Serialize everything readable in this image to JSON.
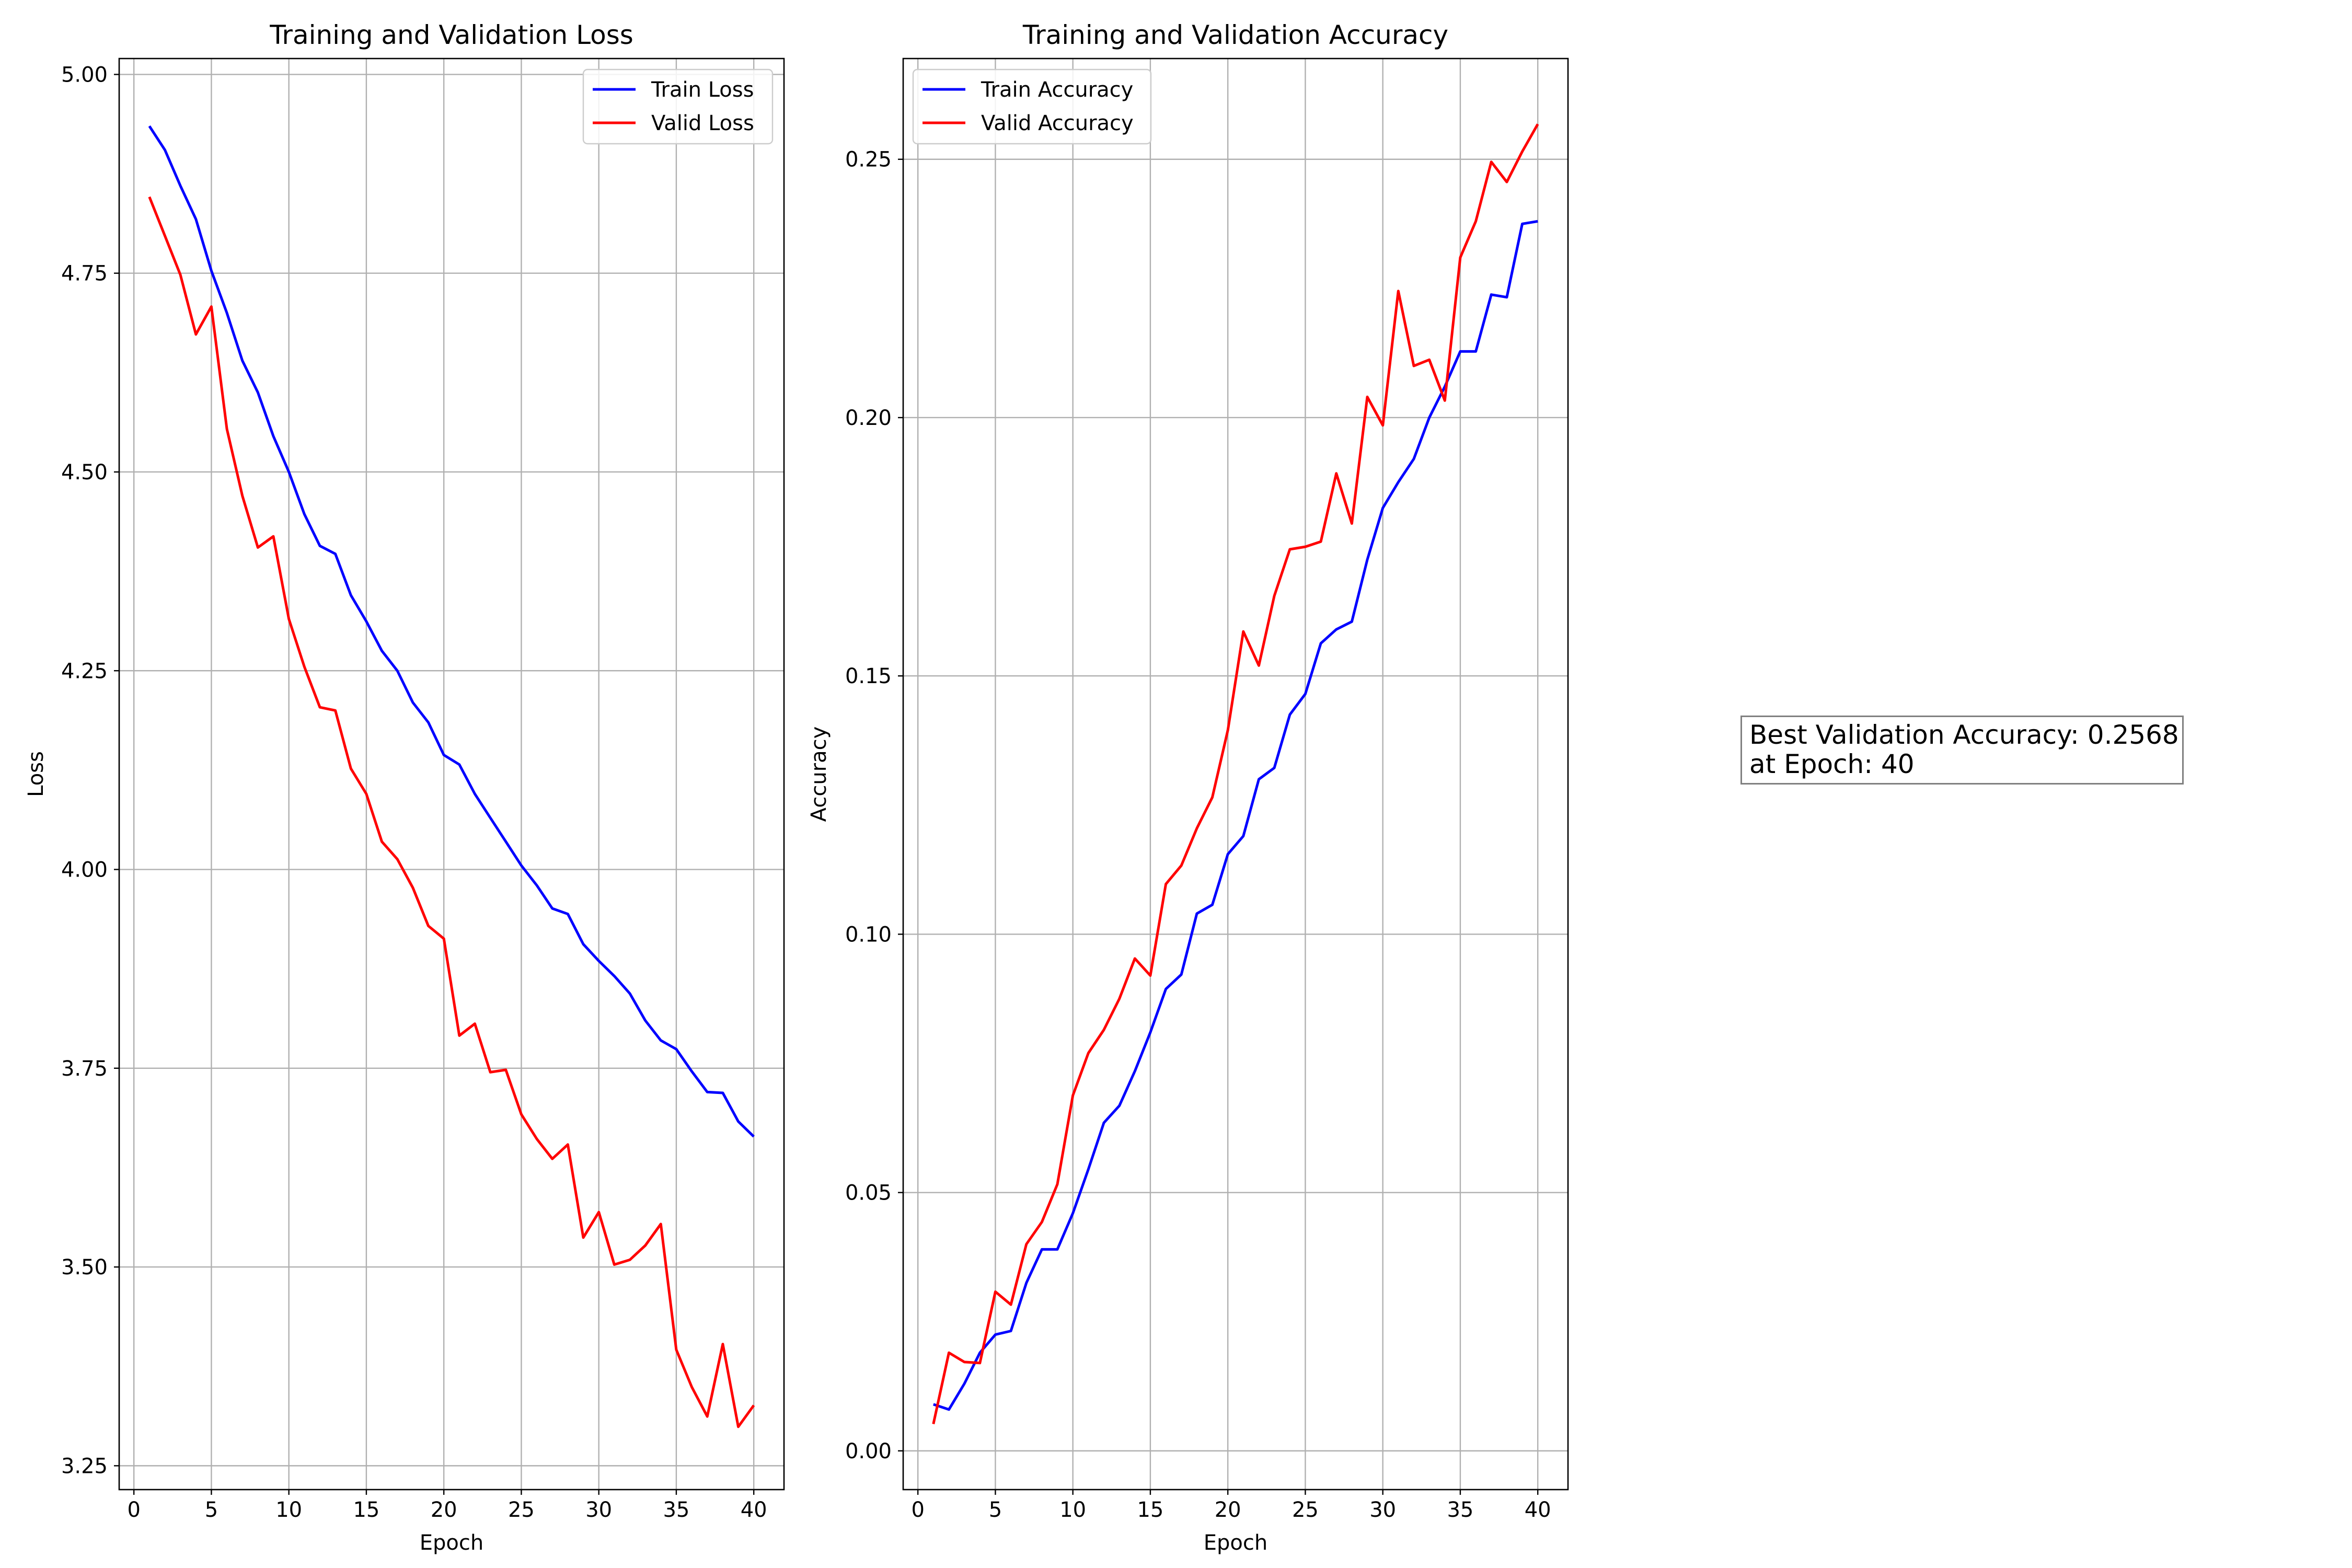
{
  "chart_data": [
    {
      "type": "line",
      "title": "Training and Validation Loss",
      "xlabel": "Epoch",
      "ylabel": "Loss",
      "xlim": [
        -0.95,
        41.95
      ],
      "ylim": [
        3.22,
        5.02
      ],
      "xticks": [
        "0",
        "5",
        "10",
        "15",
        "20",
        "25",
        "30",
        "35",
        "40"
      ],
      "yticks": [
        "3.25",
        "3.50",
        "3.75",
        "4.00",
        "4.25",
        "4.50",
        "4.75",
        "5.00"
      ],
      "grid": true,
      "legend": "top-right",
      "x": [
        1,
        2,
        3,
        4,
        5,
        6,
        7,
        8,
        9,
        10,
        11,
        12,
        13,
        14,
        15,
        16,
        17,
        18,
        19,
        20,
        21,
        22,
        23,
        24,
        25,
        26,
        27,
        28,
        29,
        30,
        31,
        32,
        33,
        34,
        35,
        36,
        37,
        38,
        39,
        40
      ],
      "series": [
        {
          "name": "Train Loss",
          "color": "#0000ff",
          "values": [
            4.935,
            4.905,
            4.86,
            4.818,
            4.753,
            4.7,
            4.64,
            4.6,
            4.545,
            4.5,
            4.447,
            4.407,
            4.397,
            4.345,
            4.312,
            4.275,
            4.25,
            4.21,
            4.185,
            4.144,
            4.132,
            4.095,
            4.065,
            4.035,
            4.005,
            3.98,
            3.951,
            3.944,
            3.906,
            3.885,
            3.866,
            3.844,
            3.81,
            3.785,
            3.774,
            3.746,
            3.72,
            3.719,
            3.683,
            3.664
          ]
        },
        {
          "name": "Valid Loss",
          "color": "#ff0000",
          "values": [
            4.846,
            4.797,
            4.748,
            4.673,
            4.708,
            4.554,
            4.47,
            4.405,
            4.419,
            4.315,
            4.255,
            4.204,
            4.2,
            4.127,
            4.095,
            4.035,
            4.013,
            3.977,
            3.929,
            3.913,
            3.791,
            3.806,
            3.745,
            3.748,
            3.692,
            3.661,
            3.636,
            3.654,
            3.537,
            3.569,
            3.503,
            3.509,
            3.527,
            3.554,
            3.396,
            3.349,
            3.312,
            3.403,
            3.299,
            3.326
          ]
        }
      ]
    },
    {
      "type": "line",
      "title": "Training and Validation Accuracy",
      "xlabel": "Epoch",
      "ylabel": "Accuracy",
      "xlim": [
        -0.95,
        41.95
      ],
      "ylim": [
        -0.0075,
        0.2695
      ],
      "xticks": [
        "0",
        "5",
        "10",
        "15",
        "20",
        "25",
        "30",
        "35",
        "40"
      ],
      "yticks": [
        "0.00",
        "0.05",
        "0.10",
        "0.15",
        "0.20",
        "0.25"
      ],
      "grid": true,
      "legend": "top-left",
      "x": [
        1,
        2,
        3,
        4,
        5,
        6,
        7,
        8,
        9,
        10,
        11,
        12,
        13,
        14,
        15,
        16,
        17,
        18,
        19,
        20,
        21,
        22,
        23,
        24,
        25,
        26,
        27,
        28,
        29,
        30,
        31,
        32,
        33,
        34,
        35,
        36,
        37,
        38,
        39,
        40
      ],
      "series": [
        {
          "name": "Train Accuracy",
          "color": "#0000ff",
          "values": [
            0.009,
            0.008,
            0.013,
            0.019,
            0.0225,
            0.0232,
            0.0325,
            0.039,
            0.039,
            0.046,
            0.0545,
            0.0635,
            0.0668,
            0.0735,
            0.081,
            0.0894,
            0.0922,
            0.104,
            0.1057,
            0.1155,
            0.119,
            0.13,
            0.1322,
            0.1425,
            0.1465,
            0.1563,
            0.159,
            0.1605,
            0.1725,
            0.1825,
            0.1875,
            0.192,
            0.2,
            0.206,
            0.2128,
            0.2128,
            0.2238,
            0.2233,
            0.2375,
            0.238
          ]
        },
        {
          "name": "Valid Accuracy",
          "color": "#ff0000",
          "values": [
            0.0052,
            0.019,
            0.0172,
            0.017,
            0.0308,
            0.0283,
            0.04,
            0.0443,
            0.0516,
            0.0688,
            0.077,
            0.0815,
            0.0875,
            0.0953,
            0.092,
            0.1097,
            0.1133,
            0.1205,
            0.1265,
            0.1395,
            0.1586,
            0.152,
            0.1655,
            0.1745,
            0.175,
            0.176,
            0.1892,
            0.1795,
            0.204,
            0.1985,
            0.2245,
            0.21,
            0.2112,
            0.2033,
            0.231,
            0.238,
            0.2495,
            0.2456,
            0.2515,
            0.2568
          ]
        }
      ]
    }
  ],
  "annotation": {
    "line1": "Best Validation Accuracy: 0.2568",
    "line2": "at Epoch: 40"
  }
}
